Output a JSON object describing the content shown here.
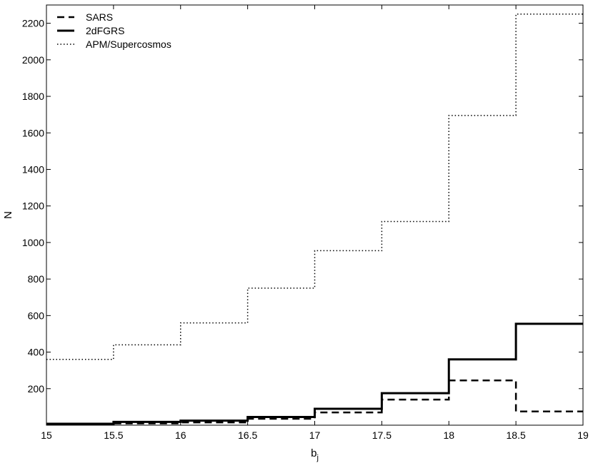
{
  "chart_data": {
    "type": "line",
    "step": true,
    "xlabel": "b",
    "xlabel_sub": "j",
    "ylabel": "N",
    "xlim": [
      15,
      19
    ],
    "ylim": [
      0,
      2300
    ],
    "xticks": [
      15,
      15.5,
      16,
      16.5,
      17,
      17.5,
      18,
      18.5,
      19
    ],
    "yticks": [
      200,
      400,
      600,
      800,
      1000,
      1200,
      1400,
      1600,
      1800,
      2000,
      2200
    ],
    "grid": false,
    "legend_position": "top-left",
    "bin_edges": [
      15,
      15.5,
      16,
      16.5,
      17,
      17.5,
      18,
      18.5,
      19
    ],
    "series": [
      {
        "name": "SARS",
        "style": "dashed",
        "color": "#000000",
        "values": [
          5,
          10,
          15,
          35,
          70,
          140,
          245,
          75
        ]
      },
      {
        "name": "2dFGRS",
        "style": "solid",
        "color": "#000000",
        "values": [
          8,
          18,
          25,
          45,
          90,
          175,
          360,
          555
        ]
      },
      {
        "name": "APM/Supercosmos",
        "style": "dotted",
        "color": "#000000",
        "values": [
          360,
          440,
          560,
          750,
          955,
          1115,
          1695,
          2250
        ]
      }
    ]
  }
}
